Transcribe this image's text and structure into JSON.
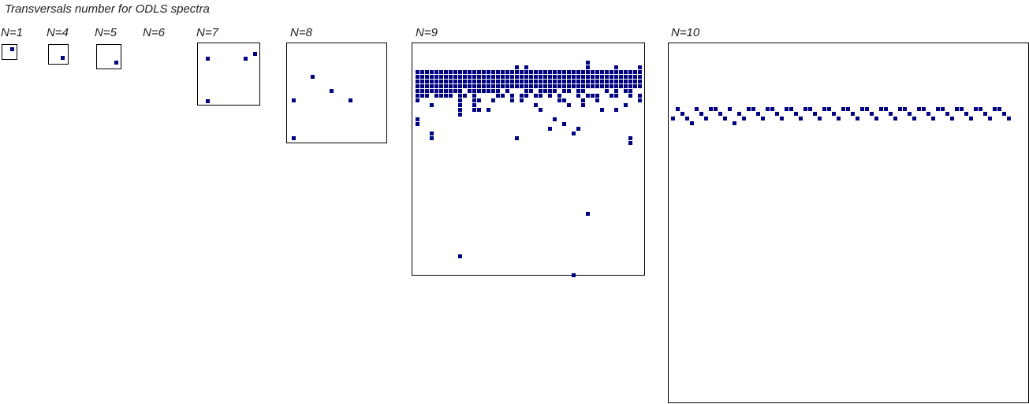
{
  "title": "Transversals number for ODLS spectra",
  "dot_color": "#000080",
  "panels": [
    {
      "label": "N=1",
      "order": 1,
      "points": [
        [
          1,
          1
        ]
      ]
    },
    {
      "label": "N=4",
      "order": 4,
      "points": [
        [
          3,
          3
        ]
      ]
    },
    {
      "label": "N=5",
      "order": 5,
      "points": [
        [
          5,
          5
        ]
      ]
    },
    {
      "label": "N=6",
      "order": 6,
      "points": []
    },
    {
      "label": "N=7",
      "order": 7,
      "points": [
        [
          3,
          3
        ],
        [
          12,
          3
        ],
        [
          14,
          2
        ],
        [
          3,
          12
        ]
      ]
    },
    {
      "label": "N=8",
      "order": 8,
      "points": [
        [
          9,
          7
        ],
        [
          5,
          12
        ],
        [
          13,
          10
        ],
        [
          17,
          13
        ],
        [
          5,
          20
        ]
      ]
    },
    {
      "label": "N=9",
      "order": 9
    },
    {
      "label": "N=10",
      "order": 10
    }
  ]
}
